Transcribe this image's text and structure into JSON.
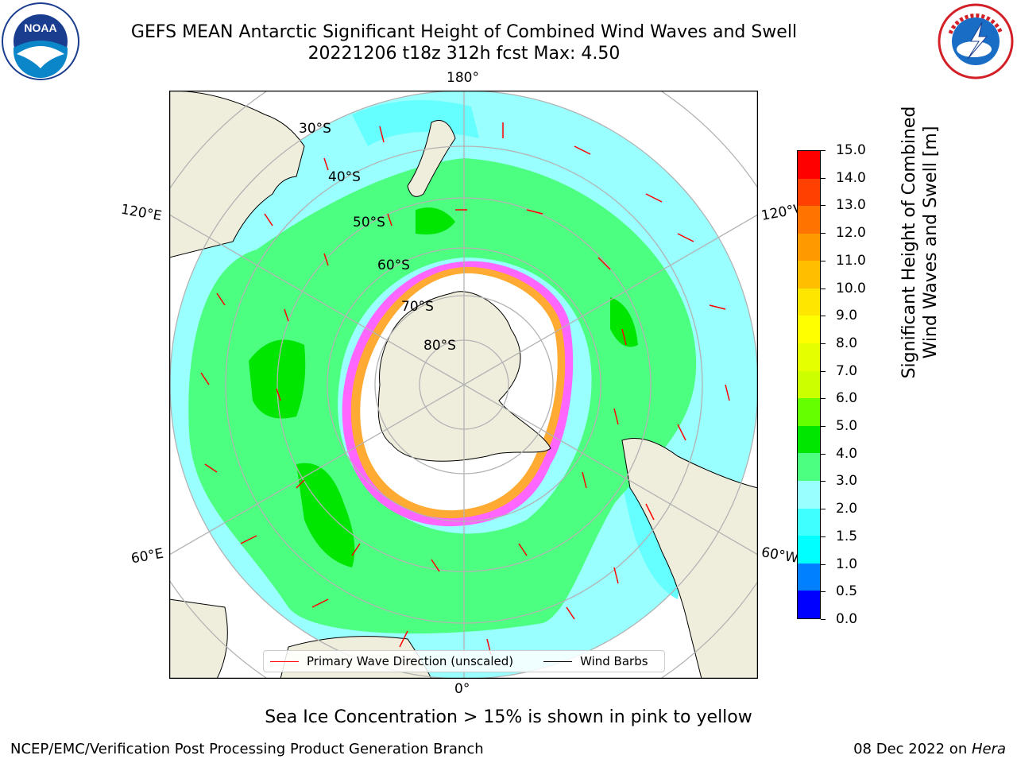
{
  "header": {
    "title_line1": "GEFS MEAN Antarctic Significant Height of Combined Wind Waves and Swell",
    "title_line2": "20221206 t18z 312h fcst   Max: 4.50"
  },
  "logos": {
    "left": "NOAA",
    "right": "NATIONAL WEATHER SERVICE"
  },
  "map": {
    "projection": "south polar stereographic",
    "lon_labels": {
      "top": "180°",
      "bottom": "0°",
      "left_upper": "120°E",
      "right_upper": "120°W",
      "left_lower": "60°E",
      "right_lower": "60°W"
    },
    "lat_labels": [
      "30°S",
      "40°S",
      "50°S",
      "60°S",
      "70°S",
      "80°S"
    ],
    "colors": {
      "ocean_low": "#66ffff",
      "ocean_mid": "#99ffff",
      "wave_3_4": "#4dff80",
      "wave_4_5": "#00e600",
      "land": "#efeddc",
      "ice": "#ffffff",
      "ice_edge": "#ff33ff",
      "ice_fringe": "#ffaa33",
      "grid": "#b3b3b3"
    }
  },
  "chart_data": {
    "type": "heatmap",
    "max_value": 4.5,
    "colorbar": {
      "label": "Significant Height of Combined\nWind Waves and Swell [m]",
      "label_line1": "Significant Height of Combined",
      "label_line2": "Wind Waves and Swell [m]",
      "ticks": [
        "0.0",
        "0.5",
        "1.0",
        "1.5",
        "2.0",
        "3.0",
        "4.0",
        "5.0",
        "6.0",
        "7.0",
        "8.0",
        "9.0",
        "10.0",
        "11.0",
        "12.0",
        "13.0",
        "14.0",
        "15.0"
      ],
      "colors": [
        "#0000ff",
        "#0080ff",
        "#00ffff",
        "#40ffff",
        "#99ffff",
        "#4dff80",
        "#00e600",
        "#66ff00",
        "#ccff00",
        "#e6ff00",
        "#ffff00",
        "#ffe600",
        "#ffbf00",
        "#ff9900",
        "#ff7300",
        "#ff4000",
        "#ff0000"
      ]
    },
    "legend": [
      {
        "label": "Primary Wave Direction (unscaled)",
        "color": "#ff0000"
      },
      {
        "label": "Wind Barbs",
        "color": "#000000"
      }
    ]
  },
  "caption": "Sea Ice Concentration > 15% is shown in pink to yellow",
  "footer": {
    "left": "NCEP/EMC/Verification Post Processing Product Generation Branch",
    "right_date": "08 Dec 2022 on ",
    "right_host": "Hera"
  }
}
